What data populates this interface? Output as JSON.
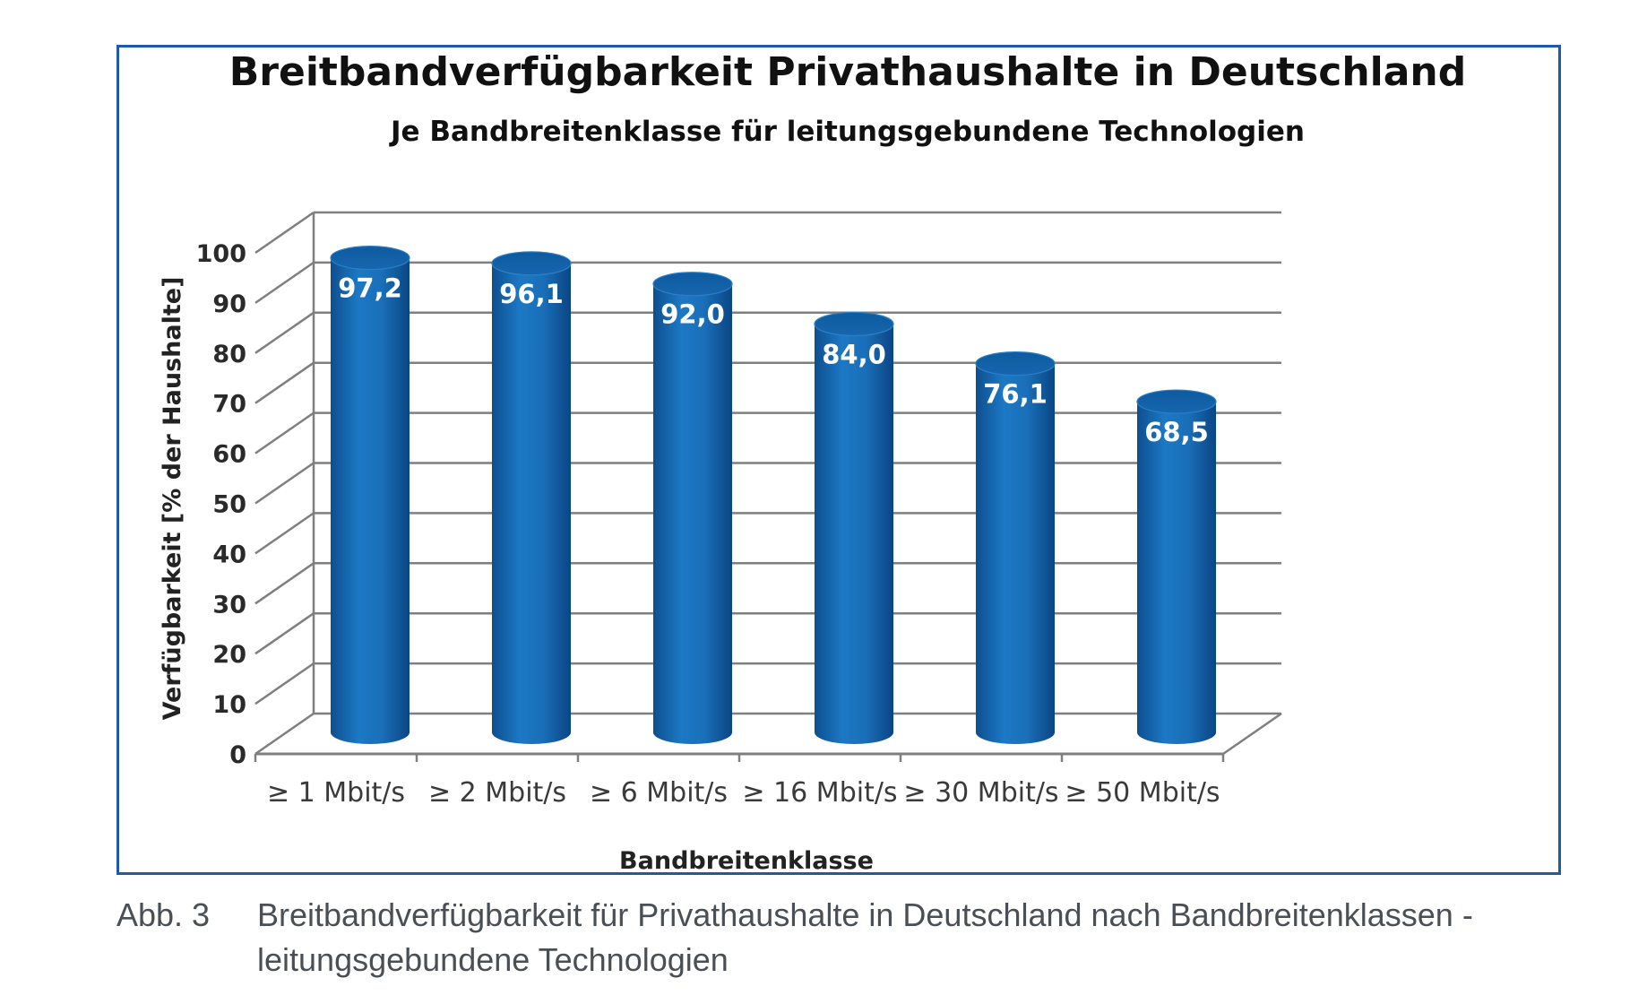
{
  "chart_data": {
    "type": "bar",
    "title": "Breitbandverfügbarkeit Privathaushalte in Deutschland",
    "subtitle": "Je Bandbreitenklasse für leitungsgebundene Technologien",
    "xlabel": "Bandbreitenklasse",
    "ylabel": "Verfügbarkeit [% der Haushalte]",
    "ylim": [
      0,
      100
    ],
    "yticks": [
      0,
      10,
      20,
      30,
      40,
      50,
      60,
      70,
      80,
      90,
      100
    ],
    "grid": true,
    "categories": [
      "≥ 1 Mbit/s",
      "≥ 2 Mbit/s",
      "≥ 6 Mbit/s",
      "≥ 16 Mbit/s",
      "≥ 30 Mbit/s",
      "≥ 50 Mbit/s"
    ],
    "values": [
      97.2,
      96.1,
      92.0,
      84.0,
      76.1,
      68.5
    ],
    "value_labels": [
      "97,2",
      "96,1",
      "92,0",
      "84,0",
      "76,1",
      "68,5"
    ],
    "bar_color": "#1768b3"
  },
  "caption": {
    "label": "Abb. 3",
    "text": "Breitbandverfügbarkeit für Privathaushalte in Deutschland nach Bandbreitenklassen - leitungsgebundene Technologien"
  },
  "colors": {
    "frame": "#1f5aa8",
    "bar": "#1768b3",
    "grid": "#7f7f7f"
  }
}
